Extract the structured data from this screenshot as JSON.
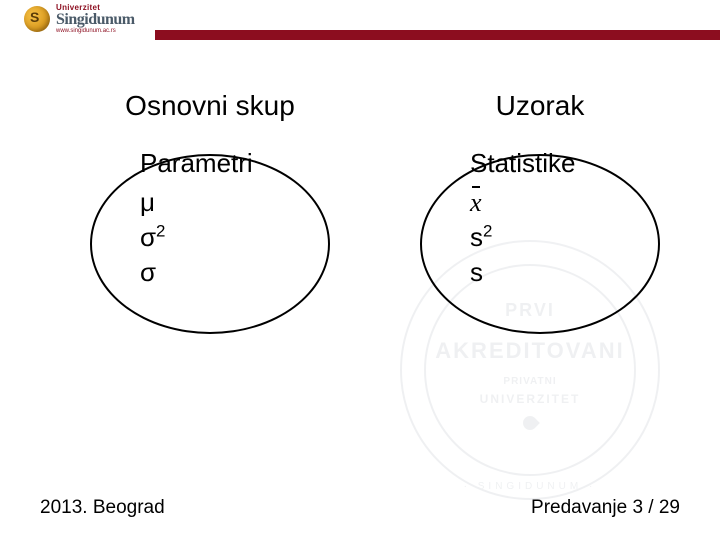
{
  "header": {
    "logo_top": "Univerzitet",
    "logo_main": "Singidunum",
    "logo_sub": "www.singidunum.ac.rs",
    "bar_color": "#8c0d1f"
  },
  "left": {
    "title": "Osnovni skup",
    "subtitle": "Parametri",
    "line1": "μ",
    "line2_base": "σ",
    "line2_exp": "2",
    "line3": "σ"
  },
  "right": {
    "title": "Uzorak",
    "subtitle": "Statistike",
    "line1": "x",
    "line2_base": "s",
    "line2_exp": "2",
    "line3": "s"
  },
  "watermark": {
    "line1": "PRVI",
    "line2": "AKREDITOVANI",
    "line3": "PRIVATNI",
    "line4": "UNIVERZITET",
    "arc": "· SINGIDUNUM ·"
  },
  "footer": {
    "left": "2013. Beograd",
    "right_prefix": "Predavanje ",
    "lecture_no": "3",
    "sep": "  / ",
    "total": "29"
  }
}
